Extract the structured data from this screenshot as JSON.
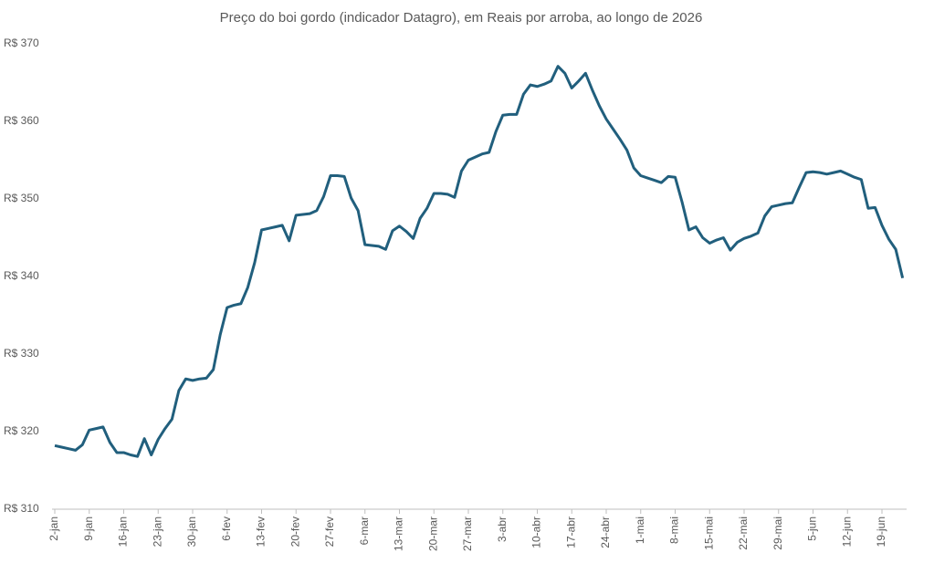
{
  "chart_data": {
    "type": "line",
    "title": "Preço do boi gordo (indicador Datagro), em Reais por arroba, ao longo de 2026",
    "categories": [
      "2-jan",
      null,
      null,
      null,
      null,
      "9-jan",
      null,
      null,
      null,
      null,
      "16-jan",
      null,
      null,
      null,
      null,
      "23-jan",
      null,
      null,
      null,
      null,
      "30-jan",
      null,
      null,
      null,
      null,
      "6-fev",
      null,
      null,
      null,
      null,
      "13-fev",
      null,
      null,
      null,
      null,
      "20-fev",
      null,
      null,
      null,
      null,
      "27-fev",
      null,
      null,
      null,
      null,
      "6-mar",
      null,
      null,
      null,
      null,
      "13-mar",
      null,
      null,
      null,
      null,
      "20-mar",
      null,
      null,
      null,
      null,
      "27-mar",
      null,
      null,
      null,
      null,
      "3-abr",
      null,
      null,
      null,
      null,
      "10-abr",
      null,
      null,
      null,
      null,
      "17-abr",
      null,
      null,
      null,
      null,
      "24-abr",
      null,
      null,
      null,
      null,
      "1-mai",
      null,
      null,
      null,
      null,
      "8-mai",
      null,
      null,
      null,
      null,
      "15-mai",
      null,
      null,
      null,
      null,
      "22-mai",
      null,
      null,
      null,
      null,
      "29-mai",
      null,
      null,
      null,
      null,
      "5-jun",
      null,
      null,
      null,
      null,
      "12-jun",
      null,
      null,
      null,
      null,
      "19-jun",
      null,
      null,
      null
    ],
    "values": [
      318.2,
      318.0,
      317.8,
      317.6,
      318.3,
      320.2,
      320.4,
      320.6,
      318.6,
      317.3,
      317.3,
      317.0,
      316.8,
      319.1,
      317.0,
      319.0,
      320.4,
      321.6,
      325.3,
      326.8,
      326.6,
      326.8,
      326.9,
      328.0,
      332.5,
      336.0,
      336.3,
      336.5,
      338.6,
      341.8,
      346.0,
      346.2,
      346.4,
      346.6,
      344.6,
      347.9,
      348.0,
      348.1,
      348.5,
      350.3,
      353.0,
      353.0,
      352.9,
      350.1,
      348.5,
      344.1,
      344.0,
      343.9,
      343.5,
      345.9,
      346.5,
      345.8,
      344.9,
      347.5,
      348.8,
      350.7,
      350.7,
      350.6,
      350.2,
      353.6,
      355.0,
      355.4,
      355.8,
      356.0,
      358.7,
      360.8,
      360.9,
      360.9,
      363.5,
      364.7,
      364.5,
      364.8,
      365.2,
      367.1,
      366.2,
      364.3,
      365.2,
      366.2,
      364.0,
      362.0,
      360.3,
      359.0,
      357.7,
      356.3,
      354.0,
      353.0,
      352.7,
      352.4,
      352.1,
      352.9,
      352.8,
      349.6,
      346.0,
      346.4,
      345.0,
      344.3,
      344.7,
      345.0,
      343.4,
      344.4,
      344.9,
      345.2,
      345.6,
      347.8,
      349.0,
      349.2,
      349.4,
      349.5,
      351.5,
      353.4,
      353.5,
      353.4,
      353.2,
      353.4,
      353.6,
      353.2,
      352.8,
      352.5,
      348.8,
      348.9,
      346.6,
      344.8,
      343.5,
      339.8
    ],
    "color": "#215f7d",
    "ylim": [
      310,
      370
    ],
    "yticks": [
      {
        "value": 310,
        "label": "R$ 310"
      },
      {
        "value": 320,
        "label": "R$ 320"
      },
      {
        "value": 330,
        "label": "R$ 330"
      },
      {
        "value": 340,
        "label": "R$ 340"
      },
      {
        "value": 350,
        "label": "R$ 350"
      },
      {
        "value": 360,
        "label": "R$ 360"
      },
      {
        "value": 370,
        "label": "R$ 370"
      }
    ],
    "grid": false
  }
}
